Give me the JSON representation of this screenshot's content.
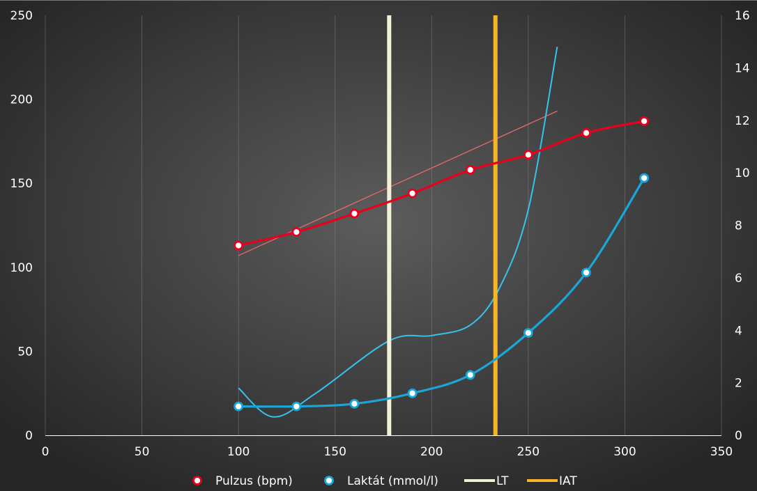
{
  "chart_data": {
    "type": "line",
    "title": "",
    "xlabel": "",
    "ylabel": "",
    "xlim": [
      0,
      350
    ],
    "ylim_left": [
      0,
      250
    ],
    "ylim_right": [
      0,
      16
    ],
    "x_ticks": [
      "0",
      "50",
      "100",
      "150",
      "200",
      "250",
      "300",
      "350"
    ],
    "y_left_ticks": [
      "0",
      "50",
      "100",
      "150",
      "200",
      "250"
    ],
    "y_right_ticks": [
      "0",
      "2",
      "4",
      "6",
      "8",
      "10",
      "12",
      "14",
      "16"
    ],
    "grid": "vertical",
    "legend_position": "bottom",
    "series": [
      {
        "name": "Pulzus (bpm)",
        "axis": "left",
        "color": "#e8001c",
        "x": [
          100,
          130,
          160,
          190,
          220,
          250,
          280,
          310
        ],
        "y": [
          113,
          121,
          132,
          144,
          158,
          167,
          180,
          187
        ]
      },
      {
        "name": "Laktát (mmol/l)",
        "axis": "right",
        "color": "#1aa6d6",
        "x": [
          100,
          130,
          160,
          190,
          220,
          250,
          280,
          310
        ],
        "y": [
          1.1,
          1.1,
          1.2,
          1.6,
          2.3,
          3.9,
          6.2,
          9.8
        ]
      }
    ],
    "trendlines": [
      {
        "of": "Pulzus (bpm)",
        "color": "#e86a6a",
        "x": [
          100,
          265
        ],
        "y": [
          107,
          193
        ]
      },
      {
        "of": "Laktát (mmol/l)",
        "color": "#35c3ee",
        "x": [
          100,
          118,
          140,
          178,
          200,
          220,
          235,
          250,
          265
        ],
        "y": [
          1.8,
          0.7,
          1.6,
          3.6,
          3.8,
          4.2,
          5.6,
          8.6,
          14.8
        ]
      }
    ],
    "vertical_markers": [
      {
        "name": "LT",
        "x": 178,
        "color": "#f2f0d8"
      },
      {
        "name": "IAT",
        "x": 233,
        "color": "#f6b527"
      }
    ]
  }
}
